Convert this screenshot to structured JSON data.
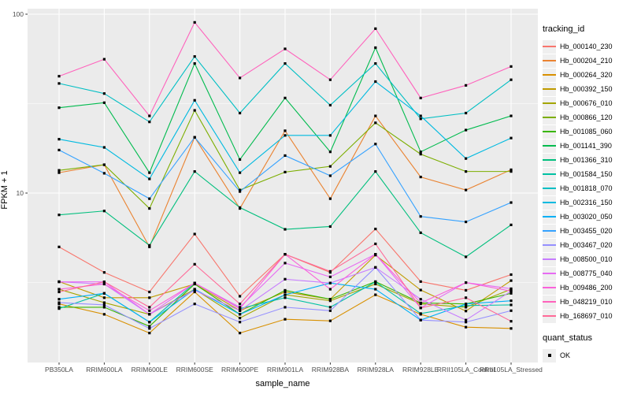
{
  "chart_data": {
    "type": "line",
    "title": "",
    "xlabel": "sample_name",
    "ylabel": "FPKM + 1",
    "y_scale": "log10",
    "y_ticks": [
      100,
      10
    ],
    "y_minor_ticks": [
      31.623,
      3.1623
    ],
    "ylim": [
      1.13,
      107
    ],
    "grid": true,
    "panel_bg": "#EBEBEB",
    "grid_color": "#FFFFFF",
    "tick_label_color": "#4D4D4D",
    "marker": {
      "shape": "square",
      "color": "#000000"
    },
    "categories": [
      "PB350LA",
      "RRIM600LA",
      "RRIM600LE",
      "RRIM600SE",
      "RRIM600PE",
      "RRIM901LA",
      "RRIM928BA",
      "RRIM928LA",
      "RRIM928LE",
      "RRII105LA_Control",
      "RRII105LA_Stressed"
    ],
    "legend": {
      "title": "tracking_id",
      "position": "right"
    },
    "quant_status": {
      "title": "quant_status",
      "items": [
        {
          "label": "OK",
          "shape": "square",
          "color": "#000000"
        }
      ]
    },
    "series": [
      {
        "name": "Hb_000140_230",
        "color": "#F8766D",
        "values": [
          5.0,
          3.6,
          2.8,
          5.9,
          2.65,
          4.55,
          3.6,
          6.3,
          3.2,
          2.86,
          3.5
        ]
      },
      {
        "name": "Hb_000204_210",
        "color": "#EA8331",
        "values": [
          13.0,
          14.4,
          5.0,
          20.5,
          8.2,
          22.3,
          9.3,
          27,
          12.3,
          10.4,
          13.5
        ]
      },
      {
        "name": "Hb_000264_320",
        "color": "#D89000",
        "values": [
          2.4,
          2.1,
          1.65,
          2.8,
          1.65,
          1.97,
          1.93,
          2.7,
          2.1,
          1.78,
          1.75
        ]
      },
      {
        "name": "Hb_000392_150",
        "color": "#C09B00",
        "values": [
          3.2,
          2.6,
          2.6,
          3.1,
          2.2,
          2.8,
          2.55,
          4.5,
          2.87,
          2.19,
          3.24
        ]
      },
      {
        "name": "Hb_000676_010",
        "color": "#A3A500",
        "values": [
          2.9,
          2.44,
          2.1,
          2.9,
          2.0,
          2.7,
          2.5,
          3.1,
          2.4,
          2.3,
          2.9
        ]
      },
      {
        "name": "Hb_000866_120",
        "color": "#7CAE00",
        "values": [
          13.4,
          14.4,
          8.2,
          29,
          10.4,
          13.1,
          14.1,
          24.7,
          16.5,
          13.2,
          13.2
        ]
      },
      {
        "name": "Hb_001085_060",
        "color": "#39B600",
        "values": [
          2.3,
          2.3,
          1.8,
          3.1,
          2.1,
          2.86,
          2.55,
          3.2,
          2.43,
          2.4,
          2.75
        ]
      },
      {
        "name": "Hb_001141_390",
        "color": "#00BB4E",
        "values": [
          30,
          32,
          13,
          53,
          15.4,
          34,
          17,
          65,
          17,
          22.5,
          27
        ]
      },
      {
        "name": "Hb_001366_310",
        "color": "#00BF7D",
        "values": [
          7.55,
          7.94,
          5.1,
          13.2,
          8.3,
          6.27,
          6.5,
          13.2,
          6.0,
          4.4,
          6.64
        ]
      },
      {
        "name": "Hb_001584_150",
        "color": "#00C1A3",
        "values": [
          2.26,
          2.75,
          1.9,
          3.14,
          2.26,
          2.6,
          2.3,
          3.19,
          2.12,
          2.35,
          2.37
        ]
      },
      {
        "name": "Hb_001818_070",
        "color": "#00BFC4",
        "values": [
          41,
          36,
          25,
          58,
          28,
          53,
          31,
          53,
          26,
          28,
          43
        ]
      },
      {
        "name": "Hb_002316_150",
        "color": "#00BAE0",
        "values": [
          20,
          18,
          12,
          33,
          13,
          21,
          21,
          42,
          27,
          15.6,
          20.3
        ]
      },
      {
        "name": "Hb_003020_050",
        "color": "#00B0F6",
        "values": [
          2.55,
          2.75,
          1.9,
          2.9,
          2.1,
          2.7,
          3.14,
          2.9,
          1.95,
          2.4,
          2.5
        ]
      },
      {
        "name": "Hb_003455_020",
        "color": "#35A2FF",
        "values": [
          17.4,
          12.9,
          9.3,
          20.5,
          10.2,
          16.2,
          12.5,
          18.8,
          7.4,
          6.9,
          8.85
        ]
      },
      {
        "name": "Hb_003467_020",
        "color": "#9590FF",
        "values": [
          2.44,
          2.37,
          1.75,
          2.4,
          1.9,
          2.3,
          2.2,
          3.84,
          1.95,
          1.9,
          2.2
        ]
      },
      {
        "name": "Hb_008500_010",
        "color": "#C77CFF",
        "values": [
          3.19,
          3.1,
          2.1,
          2.86,
          2.2,
          3.3,
          3.14,
          3.84,
          2.55,
          1.95,
          2.83
        ]
      },
      {
        "name": "Hb_008775_040",
        "color": "#E76BF3",
        "values": [
          3.19,
          3.19,
          2.1,
          3.14,
          2.3,
          4.06,
          3.4,
          4.55,
          2.28,
          3.16,
          2.92
        ]
      },
      {
        "name": "Hb_009486_200",
        "color": "#FA62DB",
        "values": [
          2.9,
          3.1,
          2.2,
          3.14,
          2.26,
          4.55,
          2.9,
          4.55,
          2.43,
          3.16,
          2.83
        ]
      },
      {
        "name": "Hb_048219_010",
        "color": "#FF62BC",
        "values": [
          45,
          56,
          27,
          90,
          44,
          64,
          43,
          83,
          34,
          40,
          51
        ]
      },
      {
        "name": "Hb_168697_010",
        "color": "#FF6A98",
        "values": [
          2.8,
          3.19,
          2.3,
          4.0,
          2.4,
          4.55,
          3.65,
          5.2,
          2.28,
          2.6,
          1.92
        ]
      }
    ]
  }
}
